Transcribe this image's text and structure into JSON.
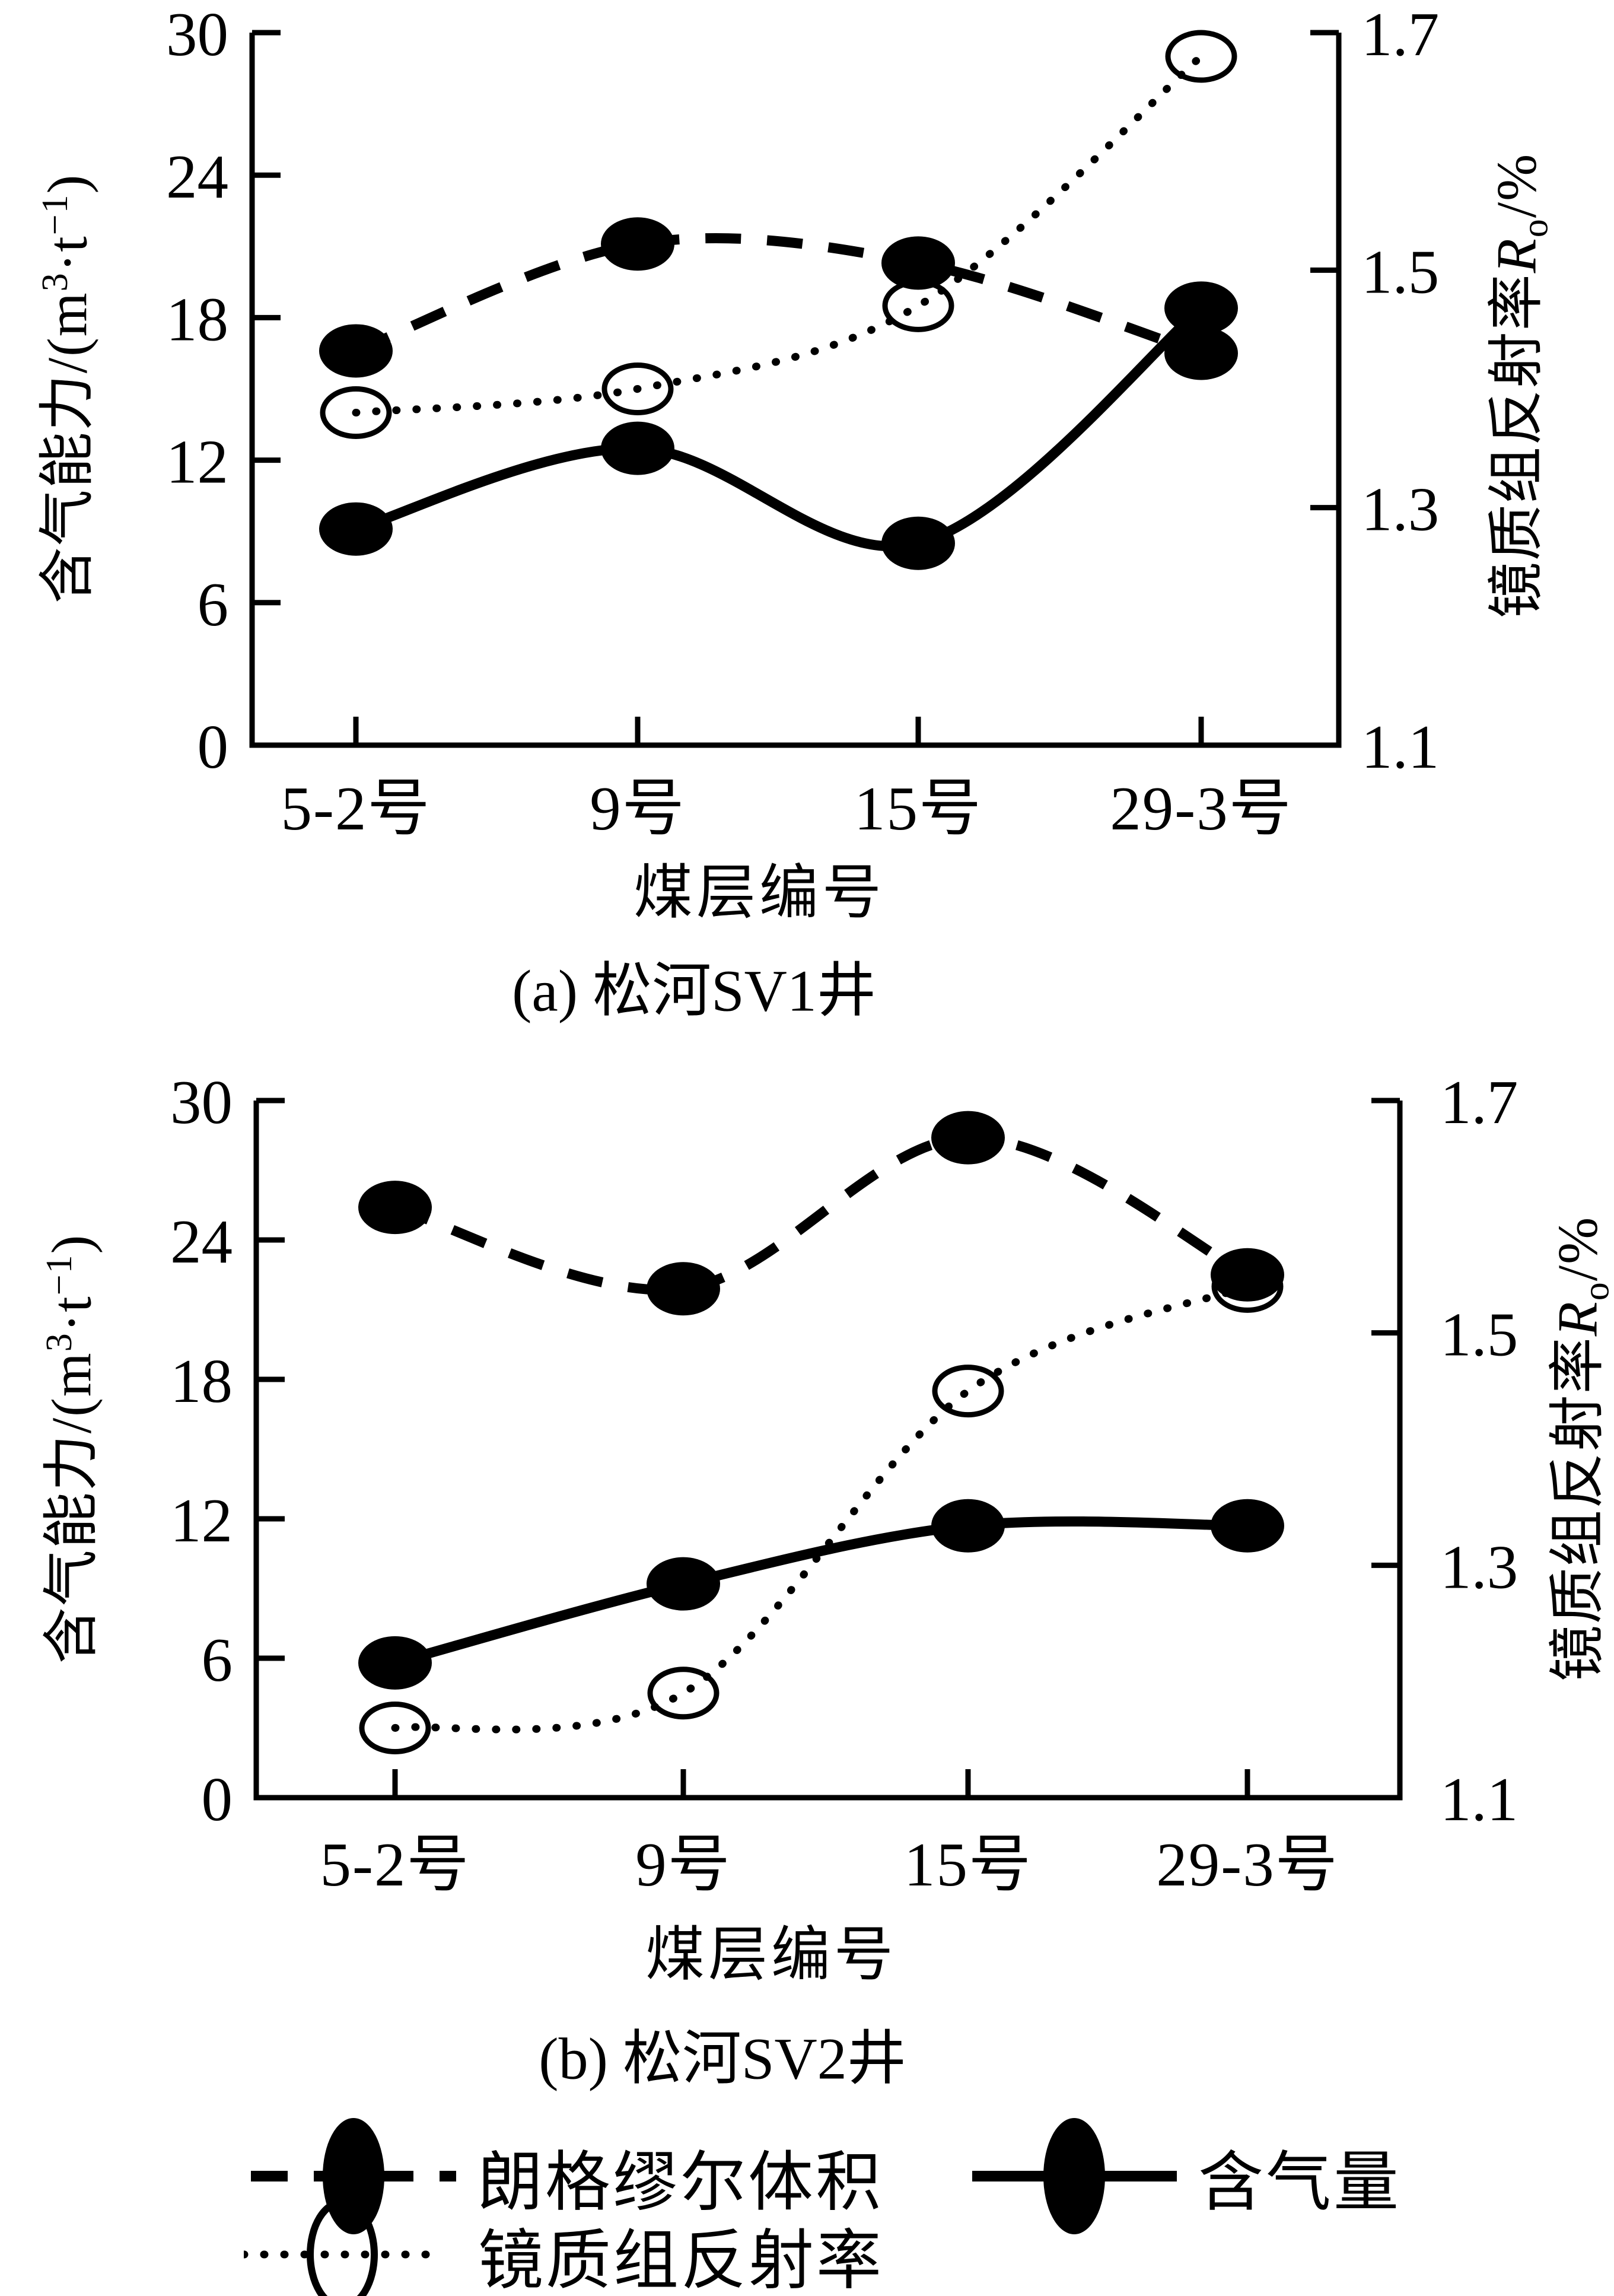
{
  "figure": {
    "background": "#ffffff",
    "ink": "#000000"
  },
  "axis_titles": {
    "x": "煤层编号",
    "left": {
      "p1": "含气能力/(m",
      "sup1": "3",
      "p2": "·t",
      "sup2": "−1",
      "p3": ")"
    },
    "right": {
      "p1": "镜质组反射率",
      "sym": "R",
      "sub": "o",
      "p2": "/%"
    }
  },
  "legend": [
    {
      "label": "朗格缪尔体积",
      "line": "dashed",
      "marker": "filled-ellipse"
    },
    {
      "label": "含气量",
      "line": "solid",
      "marker": "filled-ellipse"
    },
    {
      "label": "镜质组反射率",
      "line": "dotted",
      "marker": "open-ellipse"
    }
  ],
  "chart_data": [
    {
      "type": "line",
      "title": "(a) 松河SV1井",
      "xlabel": "煤层编号",
      "ylabel_left": "含气能力/(m3·t-1)",
      "ylabel_right": "镜质组反射率Ro/%",
      "categories": [
        "5-2号",
        "9号",
        "15号",
        "29-3号"
      ],
      "ylim_left": [
        0,
        30
      ],
      "yticks_left": [
        "0",
        "6",
        "12",
        "18",
        "24",
        "30"
      ],
      "ylim_right": [
        1.1,
        1.7
      ],
      "yticks_right": [
        "1.1",
        "1.3",
        "1.5",
        "1.7"
      ],
      "grid": false,
      "legend_position": "figure-bottom",
      "series": [
        {
          "name": "朗格缪尔体积",
          "axis": "left",
          "line": "dashed",
          "marker": "filled",
          "values": [
            16.6,
            21.1,
            20.3,
            16.5
          ]
        },
        {
          "name": "含气量",
          "axis": "left",
          "line": "solid",
          "marker": "filled",
          "values": [
            9.1,
            12.5,
            8.5,
            18.4
          ]
        },
        {
          "name": "镜质组反射率",
          "axis": "right",
          "line": "dotted",
          "marker": "open",
          "values": [
            1.38,
            1.4,
            1.47,
            1.68
          ]
        }
      ]
    },
    {
      "type": "line",
      "title": "(b) 松河SV2井",
      "xlabel": "煤层编号",
      "ylabel_left": "含气能力/(m3·t-1)",
      "ylabel_right": "镜质组反射率Ro/%",
      "categories": [
        "5-2号",
        "9号",
        "15号",
        "29-3号"
      ],
      "ylim_left": [
        0,
        30
      ],
      "yticks_left": [
        "0",
        "6",
        "12",
        "18",
        "24",
        "30"
      ],
      "ylim_right": [
        1.1,
        1.7
      ],
      "yticks_right": [
        "1.1",
        "1.3",
        "1.5",
        "1.7"
      ],
      "grid": false,
      "legend_position": "figure-bottom",
      "series": [
        {
          "name": "朗格缪尔体积",
          "axis": "left",
          "line": "dashed",
          "marker": "filled",
          "values": [
            25.4,
            21.9,
            28.4,
            22.5
          ]
        },
        {
          "name": "含气量",
          "axis": "left",
          "line": "solid",
          "marker": "filled",
          "values": [
            5.8,
            9.2,
            11.7,
            11.7
          ]
        },
        {
          "name": "镜质组反射率",
          "axis": "right",
          "line": "dotted",
          "marker": "open",
          "values": [
            1.16,
            1.19,
            1.45,
            1.54
          ]
        }
      ]
    }
  ]
}
